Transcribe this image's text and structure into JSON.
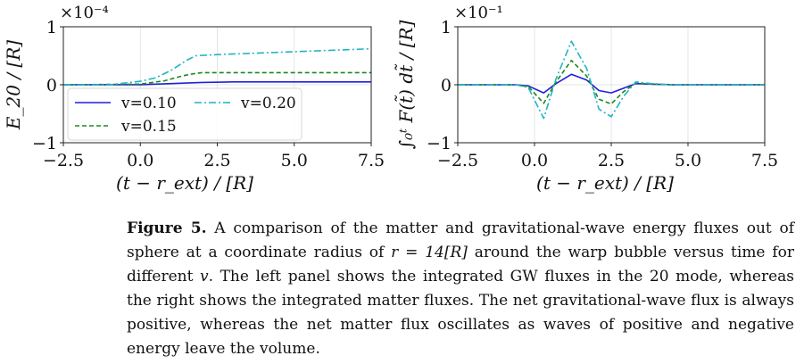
{
  "chart_data": [
    {
      "type": "line",
      "panel": "left",
      "xlabel": "(t − r_ext) / [R]",
      "ylabel": "E_20 / [R]",
      "offset_label": "×10⁻⁴",
      "xlim": [
        -2.5,
        7.5
      ],
      "ylim": [
        -1,
        1
      ],
      "xticks": [
        -2.5,
        0.0,
        2.5,
        5.0,
        7.5
      ],
      "xtick_labels": [
        "−2.5",
        "0.0",
        "2.5",
        "5.0",
        "7.5"
      ],
      "yticks": [
        -1,
        0,
        1
      ],
      "ytick_labels": [
        "−1",
        "0",
        "1"
      ],
      "grid": true,
      "legend": "lower-left",
      "series": [
        {
          "name": "v=0.10",
          "color": "#1f1fdc",
          "style": "solid",
          "x": [
            -2.5,
            0.0,
            1.0,
            2.0,
            3.0,
            4.0,
            5.0,
            6.0,
            7.5
          ],
          "y": [
            0,
            0.001,
            0.02,
            0.04,
            0.05,
            0.05,
            0.05,
            0.05,
            0.05
          ]
        },
        {
          "name": "v=0.15",
          "color": "#1a8a1a",
          "style": "dashed",
          "x": [
            -2.5,
            0.0,
            0.8,
            1.2,
            1.6,
            2.0,
            3.0,
            4.0,
            5.0,
            6.0,
            7.5
          ],
          "y": [
            0,
            0.01,
            0.07,
            0.13,
            0.18,
            0.21,
            0.21,
            0.21,
            0.21,
            0.21,
            0.21
          ]
        },
        {
          "name": "v=0.20",
          "color": "#1fb4c4",
          "style": "dashdot",
          "x": [
            -2.5,
            -1.0,
            0.0,
            0.5,
            1.0,
            1.5,
            1.8,
            2.5,
            3.5,
            4.5,
            5.5,
            6.5,
            7.5
          ],
          "y": [
            0,
            0,
            0.06,
            0.12,
            0.25,
            0.42,
            0.5,
            0.52,
            0.54,
            0.56,
            0.58,
            0.6,
            0.62
          ]
        }
      ]
    },
    {
      "type": "line",
      "panel": "right",
      "xlabel": "(t − r_ext) / [R]",
      "ylabel": "∫₀ᵗ F(t̃) dt̃ / [R]",
      "offset_label": "×10⁻¹",
      "xlim": [
        -2.5,
        7.5
      ],
      "ylim": [
        -1,
        1
      ],
      "xticks": [
        -2.5,
        0.0,
        2.5,
        5.0,
        7.5
      ],
      "xtick_labels": [
        "−2.5",
        "0.0",
        "2.5",
        "5.0",
        "7.5"
      ],
      "yticks": [
        -1,
        0,
        1
      ],
      "ytick_labels": [
        "−1",
        "0",
        "1"
      ],
      "grid": true,
      "legend": "none",
      "series": [
        {
          "name": "v=0.10",
          "color": "#1f1fdc",
          "style": "solid",
          "x": [
            -2.5,
            -0.6,
            -0.2,
            0.3,
            0.7,
            1.2,
            1.7,
            2.1,
            2.5,
            2.9,
            3.3,
            3.8,
            4.5,
            7.5
          ],
          "y": [
            0,
            0,
            -0.02,
            -0.14,
            0.02,
            0.18,
            0.08,
            -0.1,
            -0.14,
            -0.06,
            0.02,
            0.01,
            0,
            0
          ]
        },
        {
          "name": "v=0.15",
          "color": "#1a8a1a",
          "style": "dashed",
          "x": [
            -2.5,
            -0.6,
            -0.2,
            0.3,
            0.7,
            1.2,
            1.7,
            2.1,
            2.5,
            2.9,
            3.3,
            3.8,
            4.5,
            7.5
          ],
          "y": [
            0,
            0,
            -0.03,
            -0.32,
            0.05,
            0.42,
            0.15,
            -0.25,
            -0.33,
            -0.12,
            0.03,
            0.01,
            0,
            0
          ]
        },
        {
          "name": "v=0.20",
          "color": "#1fb4c4",
          "style": "dashdot",
          "x": [
            -2.5,
            -0.6,
            -0.2,
            0.3,
            0.7,
            1.2,
            1.7,
            2.1,
            2.5,
            2.9,
            3.3,
            3.8,
            4.5,
            7.5
          ],
          "y": [
            0,
            0,
            -0.05,
            -0.58,
            0.1,
            0.75,
            0.28,
            -0.42,
            -0.55,
            -0.2,
            0.05,
            0.02,
            0,
            0
          ]
        }
      ]
    }
  ],
  "caption": {
    "label": "Figure 5.",
    "t1": " A comparison of the matter and gravitational-wave energy fluxes out of sphere at a coordinate radius of ",
    "t2": " around the warp bubble versus time for different ",
    "t3": ". The left panel shows the integrated GW fluxes in the 20 mode, whereas the right shows the integrated matter fluxes. The net gravitational-wave flux is always positive, whereas the net matter flux oscillates as waves of positive and negative energy leave the volume.",
    "r_expr": "r = 14[R]",
    "v_symbol": "v"
  }
}
